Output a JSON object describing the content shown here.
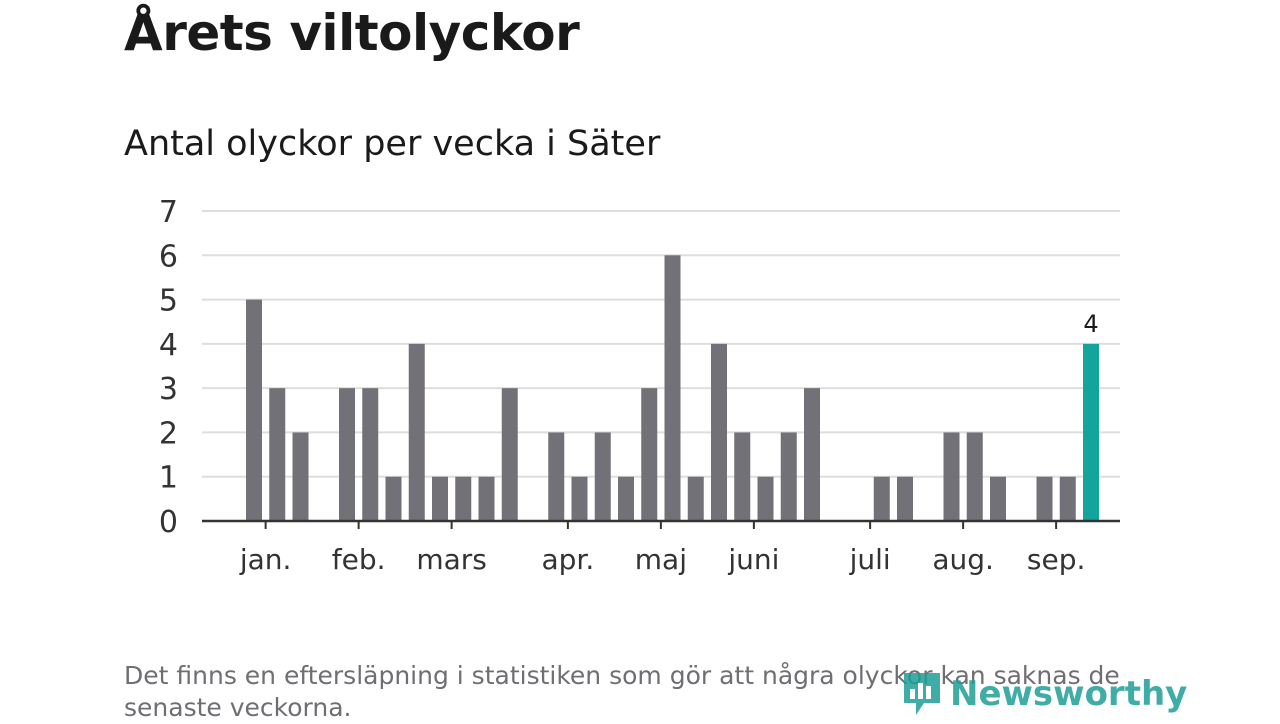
{
  "title": "Årets viltolyckor",
  "subtitle": "Antal olyckor per vecka i Säter",
  "footnote": "Det finns en eftersläpning i statistiken som gör att några olyckor kan saknas de senaste veckorna.",
  "logo": {
    "text": "Newsworthy",
    "icon": "newsworthy-bar-chart-icon"
  },
  "colors": {
    "bar": "#727177",
    "highlight": "#13a59c",
    "grid": "#dedede",
    "axis": "#333333",
    "text": "#333333"
  },
  "chart_data": {
    "type": "bar",
    "title": "Antal olyckor per vecka i Säter",
    "xlabel": "",
    "ylabel": "",
    "ylim": [
      0,
      7
    ],
    "yticks": [
      0,
      1,
      2,
      3,
      4,
      5,
      6,
      7
    ],
    "grid": true,
    "month_labels": [
      {
        "label": "jan.",
        "week_index": 0.5
      },
      {
        "label": "feb.",
        "week_index": 4.5
      },
      {
        "label": "mars",
        "week_index": 8.5
      },
      {
        "label": "apr.",
        "week_index": 13.5
      },
      {
        "label": "maj",
        "week_index": 17.5
      },
      {
        "label": "juni",
        "week_index": 21.5
      },
      {
        "label": "juli",
        "week_index": 26.5
      },
      {
        "label": "aug.",
        "week_index": 30.5
      },
      {
        "label": "sep.",
        "week_index": 34.5
      }
    ],
    "values": [
      5,
      3,
      2,
      0,
      3,
      3,
      1,
      4,
      1,
      1,
      1,
      3,
      0,
      2,
      1,
      2,
      1,
      3,
      6,
      1,
      4,
      2,
      1,
      2,
      3,
      0,
      0,
      1,
      1,
      0,
      2,
      2,
      1,
      0,
      1,
      1,
      4
    ],
    "highlight_index": 36,
    "data_labels": [
      {
        "index": 36,
        "text": "4"
      }
    ]
  }
}
